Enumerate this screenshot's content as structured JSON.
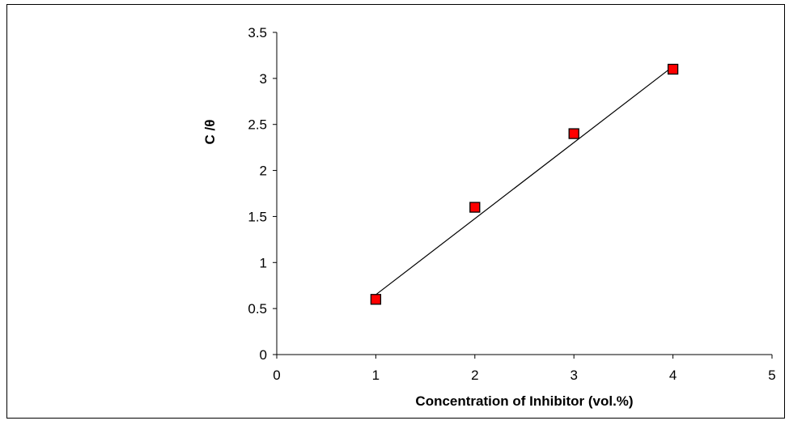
{
  "chart_data": {
    "type": "scatter",
    "title": "",
    "xlabel": "Concentration of Inhibitor (vol.%)",
    "ylabel": "C /θ",
    "xlim": [
      0,
      5
    ],
    "ylim": [
      0,
      3.5
    ],
    "x_ticks": [
      0,
      1,
      2,
      3,
      4,
      5
    ],
    "y_ticks": [
      0,
      0.5,
      1,
      1.5,
      2,
      2.5,
      3,
      3.5
    ],
    "x_tick_labels": [
      "0",
      "1",
      "2",
      "3",
      "4",
      "5"
    ],
    "y_tick_labels": [
      "0",
      "0.5",
      "1",
      "1.5",
      "2",
      "2.5",
      "3",
      "3.5"
    ],
    "grid": false,
    "series": [
      {
        "x": [
          1,
          2,
          3,
          4
        ],
        "y": [
          0.6,
          1.6,
          2.4,
          3.1
        ],
        "marker": "square",
        "color": "#ff0000"
      }
    ],
    "trendline": {
      "x": [
        1,
        4
      ],
      "y": [
        0.65,
        3.13
      ],
      "color": "#000000"
    }
  }
}
